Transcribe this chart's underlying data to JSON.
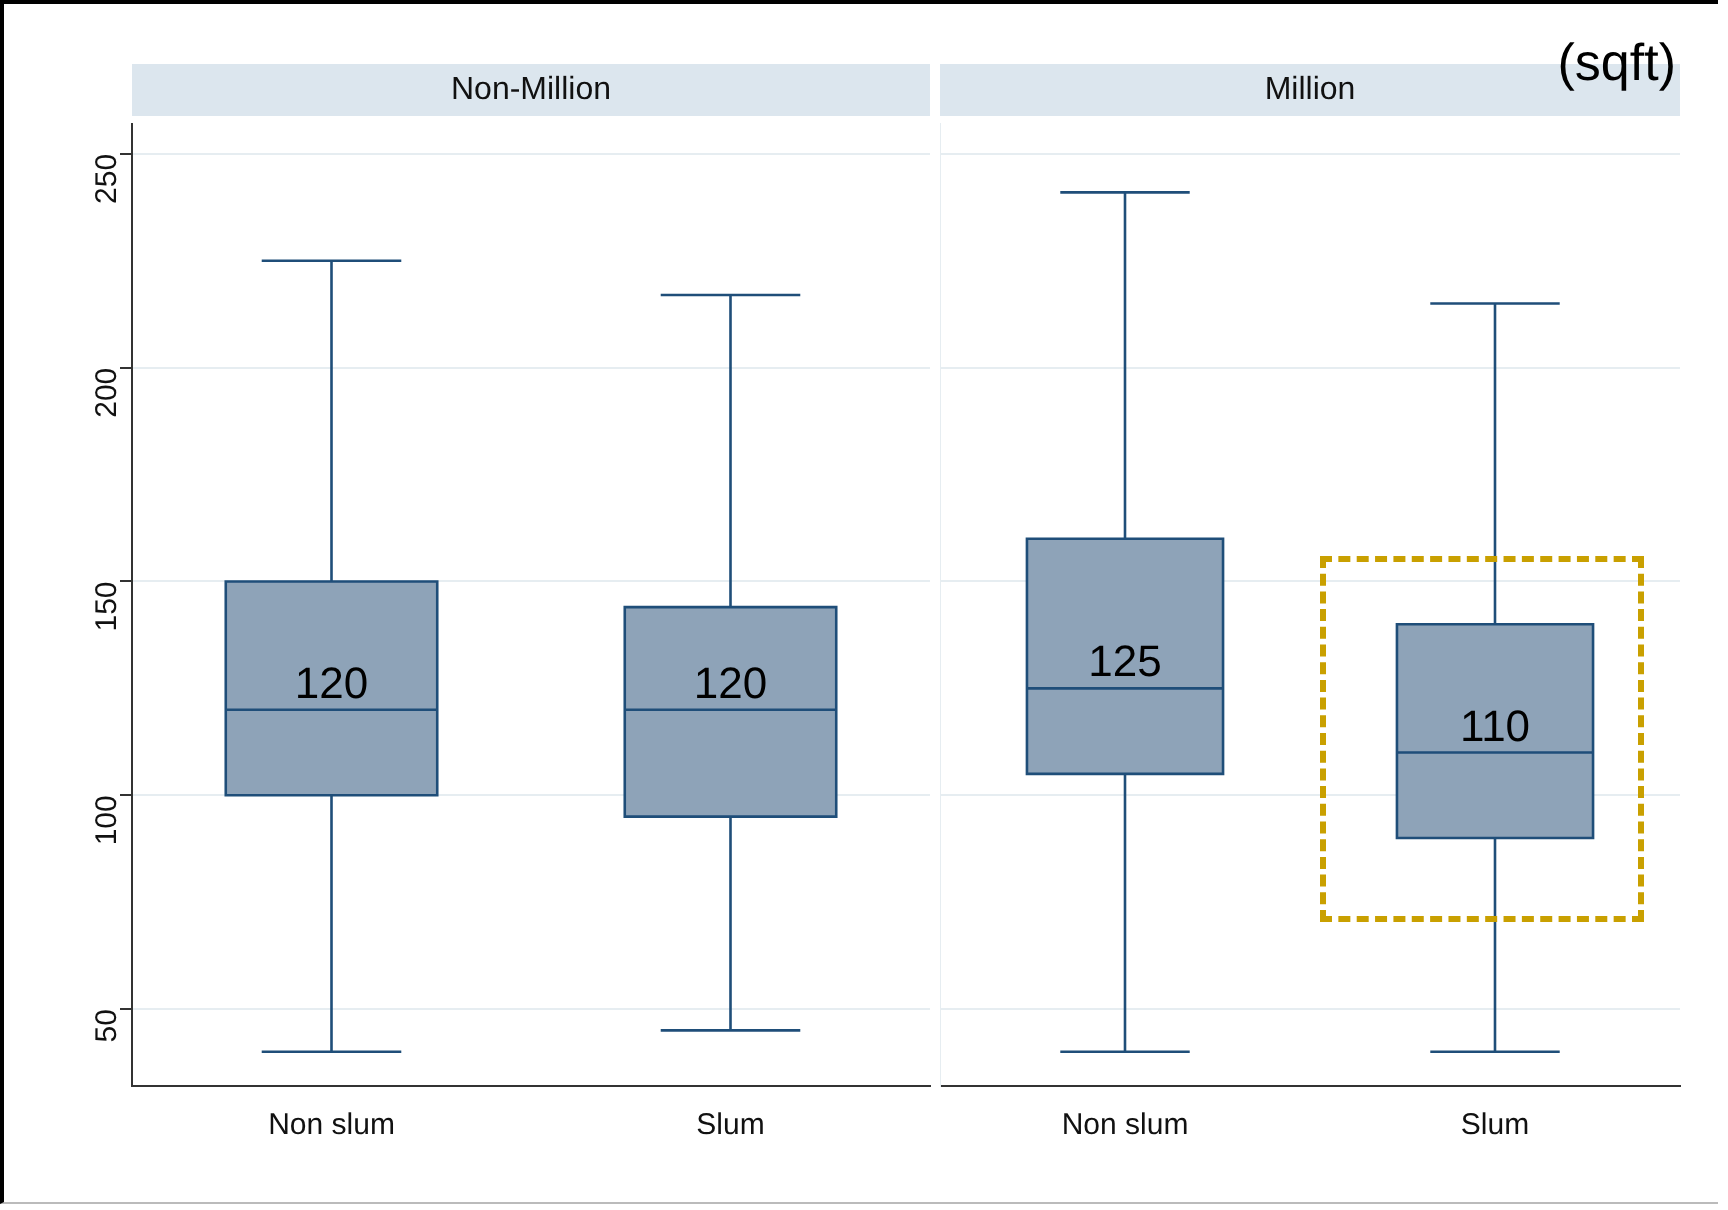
{
  "chart_data": [
    {
      "type": "box",
      "title": "Non-Million",
      "categories": [
        "Non slum",
        "Slum"
      ],
      "color": "#8ea3b8",
      "boxes": [
        {
          "low": 40,
          "q1": 100,
          "median": 120,
          "q3": 150,
          "high": 225
        },
        {
          "low": 45,
          "q1": 95,
          "median": 120,
          "q3": 144,
          "high": 217
        }
      ],
      "ylim": [
        32,
        257
      ],
      "yticks": [
        50,
        100,
        150,
        200,
        250
      ],
      "grid": "y",
      "annotations": [
        {
          "text": "120",
          "x": "Non slum",
          "y": 120
        },
        {
          "text": "120",
          "x": "Slum",
          "y": 120
        }
      ]
    },
    {
      "type": "box",
      "title": "Million",
      "categories": [
        "Non slum",
        "Slum"
      ],
      "color": "#8ea3b8",
      "boxes": [
        {
          "low": 40,
          "q1": 105,
          "median": 125,
          "q3": 160,
          "high": 241
        },
        {
          "low": 40,
          "q1": 90,
          "median": 110,
          "q3": 140,
          "high": 215
        }
      ],
      "ylim": [
        32,
        257
      ],
      "yticks": [
        50,
        100,
        150,
        200,
        250
      ],
      "grid": "y",
      "tick_labels": "x",
      "annotations": [
        "(sqft)",
        {
          "text": "125",
          "x": "Non slum",
          "y": 125
        },
        {
          "text": "110",
          "x": "Slum",
          "y": 110
        }
      ]
    }
  ]
}
